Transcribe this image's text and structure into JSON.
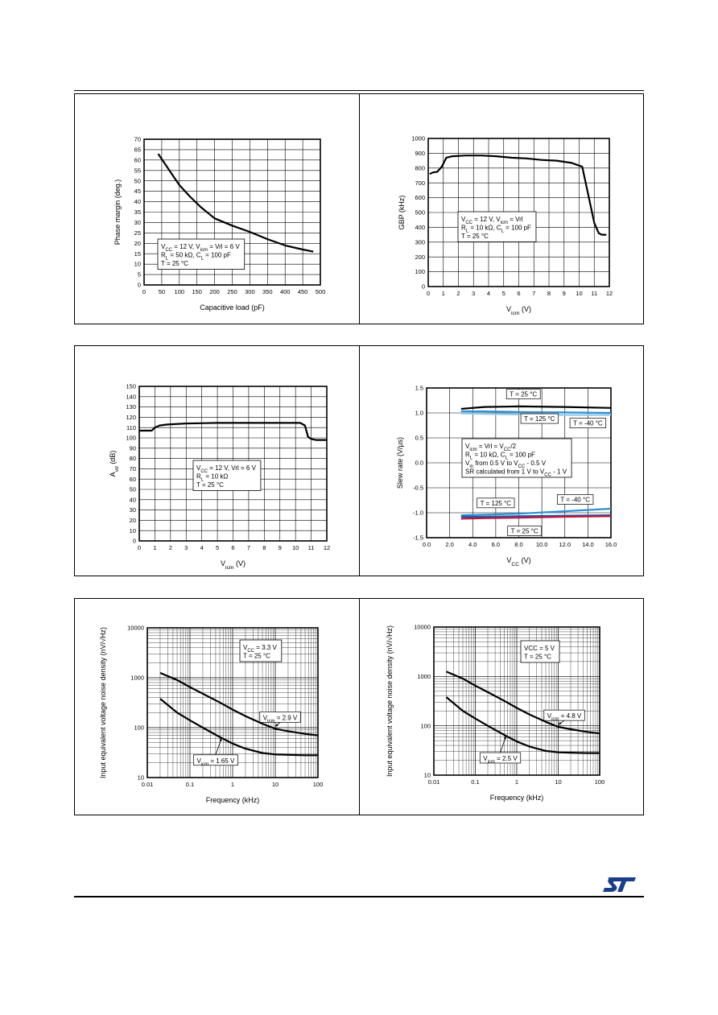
{
  "chart_data": [
    {
      "id": "phase-margin",
      "type": "line",
      "xlabel": "Capacitive load (pF)",
      "ylabel": "Phase margin (deg.)",
      "xlim": [
        0,
        500
      ],
      "ylim": [
        0,
        70
      ],
      "xticks": [
        0,
        50,
        100,
        150,
        200,
        250,
        300,
        350,
        400,
        450,
        500
      ],
      "yticks": [
        0,
        5,
        10,
        15,
        20,
        25,
        30,
        35,
        40,
        45,
        50,
        55,
        60,
        65,
        70
      ],
      "grid": true,
      "series": [
        {
          "x": [
            40,
            60,
            80,
            100,
            130,
            160,
            200,
            250,
            300,
            350,
            400,
            450,
            480
          ],
          "y": [
            63,
            58,
            53,
            48,
            42.5,
            37.5,
            32,
            28.5,
            25.5,
            22,
            19,
            17,
            16
          ]
        }
      ],
      "annotation": {
        "lines": [
          [
            {
              "t": "V"
            },
            {
              "t": "CC",
              "sub": true
            },
            {
              "t": " = 12 V, V"
            },
            {
              "t": "icm",
              "sub": true
            },
            {
              "t": " = Vrl = 6 V"
            }
          ],
          [
            {
              "t": "R"
            },
            {
              "t": "L",
              "sub": true
            },
            {
              "t": " = 50 kΩ, C"
            },
            {
              "t": "L",
              "sub": true
            },
            {
              "t": " = 100 pF"
            }
          ],
          [
            {
              "t": "T = 25 °C"
            }
          ]
        ]
      }
    },
    {
      "id": "gbp",
      "type": "line",
      "xlabel": [
        {
          "t": "V"
        },
        {
          "t": "icm",
          "sub": true
        },
        {
          "t": " (V)"
        }
      ],
      "ylabel": "GBP (kHz)",
      "xlim": [
        0,
        12
      ],
      "ylim": [
        0,
        1000
      ],
      "xticks": [
        0,
        1,
        2,
        3,
        4,
        5,
        6,
        7,
        8,
        9,
        10,
        11,
        12
      ],
      "yticks": [
        0,
        100,
        200,
        300,
        400,
        500,
        600,
        700,
        800,
        900,
        1000
      ],
      "grid": true,
      "series": [
        {
          "x": [
            0.1,
            0.3,
            0.6,
            0.9,
            1.2,
            1.6,
            2.5,
            3.5,
            4.5,
            5.5,
            6.5,
            7.5,
            8.5,
            9.5,
            10.2,
            10.6,
            11.0,
            11.3,
            11.5,
            11.8
          ],
          "y": [
            760,
            770,
            775,
            810,
            870,
            880,
            885,
            885,
            880,
            870,
            865,
            855,
            850,
            835,
            810,
            620,
            430,
            360,
            350,
            350
          ]
        }
      ],
      "annotation": {
        "lines": [
          [
            {
              "t": "V"
            },
            {
              "t": "CC",
              "sub": true
            },
            {
              "t": " = 12 V, V"
            },
            {
              "t": "icm",
              "sub": true
            },
            {
              "t": " = Vrl"
            }
          ],
          [
            {
              "t": "R"
            },
            {
              "t": "L",
              "sub": true
            },
            {
              "t": " = 10 kΩ, C"
            },
            {
              "t": "L",
              "sub": true
            },
            {
              "t": " = 100 pF"
            }
          ],
          [
            {
              "t": "T = 25 °C"
            }
          ]
        ]
      }
    },
    {
      "id": "avd",
      "type": "line",
      "xlabel": [
        {
          "t": "V"
        },
        {
          "t": "icm",
          "sub": true
        },
        {
          "t": " (V)"
        }
      ],
      "ylabel": [
        {
          "t": "A"
        },
        {
          "t": "vd",
          "sub": true
        },
        {
          "t": " (dB)"
        }
      ],
      "xlim": [
        0,
        12
      ],
      "ylim": [
        0,
        150
      ],
      "xticks": [
        0,
        1,
        2,
        3,
        4,
        5,
        6,
        7,
        8,
        9,
        10,
        11,
        12
      ],
      "yticks": [
        0,
        10,
        20,
        30,
        40,
        50,
        60,
        70,
        80,
        90,
        100,
        110,
        120,
        130,
        140,
        150
      ],
      "grid": true,
      "series": [
        {
          "x": [
            0,
            0.8,
            1.0,
            1.3,
            1.8,
            3,
            5,
            7,
            9,
            10.3,
            10.6,
            10.8,
            11.0,
            11.3,
            12
          ],
          "y": [
            107,
            107,
            110,
            112,
            113,
            114,
            114.5,
            114.5,
            114.5,
            114.5,
            112,
            101,
            99,
            98,
            98
          ]
        }
      ],
      "annotation": {
        "lines": [
          [
            {
              "t": "V"
            },
            {
              "t": "CC",
              "sub": true
            },
            {
              "t": " = 12 V, Vrl = 6 V"
            }
          ],
          [
            {
              "t": "R"
            },
            {
              "t": "L",
              "sub": true
            },
            {
              "t": " = 10 kΩ"
            }
          ],
          [
            {
              "t": "T = 25 °C"
            }
          ]
        ]
      }
    },
    {
      "id": "slew-rate",
      "type": "line",
      "xlabel": [
        {
          "t": "V"
        },
        {
          "t": "CC",
          "sub": true
        },
        {
          "t": " (V)"
        }
      ],
      "ylabel": "Slew rate (V/µs)",
      "xlim": [
        0,
        16
      ],
      "ylim": [
        -1.5,
        1.5
      ],
      "xticks": [
        0,
        2,
        4,
        6,
        8,
        10,
        12,
        14,
        16
      ],
      "xticklabels": [
        "0.0",
        "2.0",
        "4.0",
        "6.0",
        "8.0",
        "10.0",
        "12.0",
        "14.0",
        "16.0"
      ],
      "yticks": [
        -1.5,
        -1.0,
        -0.5,
        0,
        0.5,
        1.0,
        1.5
      ],
      "yticklabels": [
        "-1.5",
        "-1.0",
        "-0.5",
        "0.0",
        "0.5",
        "1.0",
        "1.5"
      ],
      "grid": true,
      "series": [
        {
          "name": "T = 25 °C",
          "color": "#000000",
          "x": [
            3,
            5,
            8,
            12,
            16
          ],
          "y": [
            1.08,
            1.12,
            1.13,
            1.12,
            1.1
          ]
        },
        {
          "name": "T = 125 °C",
          "color": "#2e8fd0",
          "x": [
            3,
            5,
            8,
            12,
            16
          ],
          "y": [
            1.03,
            1.03,
            1.02,
            1.01,
            1.0
          ]
        },
        {
          "name": "T = -40 °C",
          "color": "#8fc8ea",
          "x": [
            3,
            5,
            8,
            12,
            16
          ],
          "y": [
            0.99,
            0.98,
            0.97,
            0.96,
            0.96
          ]
        },
        {
          "name": "T = -40 °C",
          "color": "#2e8fd0",
          "x": [
            3,
            5,
            8,
            12,
            16
          ],
          "y": [
            -1.05,
            -1.04,
            -1.02,
            -0.97,
            -0.92
          ]
        },
        {
          "name": "T = 125 °C",
          "color": "#1a5aa8",
          "x": [
            3,
            5,
            8,
            12,
            16
          ],
          "y": [
            -1.08,
            -1.08,
            -1.07,
            -1.06,
            -1.05
          ]
        },
        {
          "name": "T = 25 °C",
          "color": "#c0143c",
          "x": [
            3,
            5,
            8,
            12,
            16
          ],
          "y": [
            -1.12,
            -1.11,
            -1.1,
            -1.08,
            -1.07
          ]
        }
      ],
      "labels": [
        {
          "text": "T = 25 °C",
          "x": 8.4,
          "y": 1.36
        },
        {
          "text": "T = 125 °C",
          "x": 9.8,
          "y": 0.87
        },
        {
          "text": "T = -40 °C",
          "x": 14.0,
          "y": 0.78
        },
        {
          "text": "T = 125 °C",
          "x": 6.0,
          "y": -0.82
        },
        {
          "text": "T = -40 °C",
          "x": 12.9,
          "y": -0.75
        },
        {
          "text": "T = 25 °C",
          "x": 8.5,
          "y": -1.38
        }
      ],
      "annotation": {
        "lines": [
          [
            {
              "t": "V"
            },
            {
              "t": "icm",
              "sub": true
            },
            {
              "t": " = Vrl = V"
            },
            {
              "t": "CC",
              "sub": true
            },
            {
              "t": "/2"
            }
          ],
          [
            {
              "t": "R"
            },
            {
              "t": "L",
              "sub": true
            },
            {
              "t": " = 10 kΩ, C"
            },
            {
              "t": "L",
              "sub": true
            },
            {
              "t": " = 100 pF"
            }
          ],
          [
            {
              "t": "V"
            },
            {
              "t": "in",
              "sub": true
            },
            {
              "t": " from 0.5 V to V"
            },
            {
              "t": "CC",
              "sub": true
            },
            {
              "t": " - 0.5 V"
            }
          ],
          [
            {
              "t": "SR calculated from 1 V to V"
            },
            {
              "t": "CC",
              "sub": true
            },
            {
              "t": " - 1 V"
            }
          ]
        ]
      }
    },
    {
      "id": "noise-3v3",
      "type": "line",
      "xlabel": "Frequency (kHz)",
      "ylabel": "Input equivalent voltage noise density (nV/√Hz)",
      "xscale": "log",
      "yscale": "log",
      "xlim": [
        0.01,
        100
      ],
      "ylim": [
        10,
        10000
      ],
      "xticks": [
        0.01,
        0.1,
        1,
        10,
        100
      ],
      "xticklabels": [
        "0.01",
        "0.1",
        "1",
        "10",
        "100"
      ],
      "yticks": [
        10,
        100,
        1000,
        10000
      ],
      "yticklabels": [
        "10",
        "100",
        "1000",
        "10000"
      ],
      "grid": true,
      "series": [
        {
          "x": [
            0.02,
            0.05,
            0.1,
            0.2,
            0.5,
            1,
            2,
            5,
            10,
            20,
            50,
            100
          ],
          "y": [
            1250,
            900,
            650,
            480,
            320,
            230,
            170,
            120,
            95,
            85,
            75,
            70
          ]
        },
        {
          "x": [
            0.02,
            0.05,
            0.1,
            0.2,
            0.5,
            1,
            2,
            5,
            10,
            20,
            50,
            100
          ],
          "y": [
            380,
            200,
            140,
            100,
            65,
            48,
            38,
            31,
            29,
            28.5,
            28,
            28
          ]
        }
      ],
      "curve_labels": [
        {
          "parts": [
            {
              "t": "V"
            },
            {
              "t": "icm",
              "sub": true
            },
            {
              "t": " = 2.9 V"
            }
          ],
          "x": 13,
          "y": 160,
          "arrow": [
            10,
            105
          ]
        },
        {
          "parts": [
            {
              "t": "V"
            },
            {
              "t": "icm",
              "sub": true
            },
            {
              "t": " = 1.65 V"
            }
          ],
          "x": 0.4,
          "y": 22,
          "arrow": [
            0.55,
            62
          ]
        }
      ],
      "annotation": {
        "lines": [
          [
            {
              "t": "V"
            },
            {
              "t": "CC",
              "sub": true
            },
            {
              "t": " = 3.3 V"
            }
          ],
          [
            {
              "t": "T = 25 °C"
            }
          ]
        ]
      }
    },
    {
      "id": "noise-5v",
      "type": "line",
      "xlabel": "Frequency (kHz)",
      "ylabel": "Input equivalent voltage noise density (nV/√Hz)",
      "xscale": "log",
      "yscale": "log",
      "xlim": [
        0.01,
        100
      ],
      "ylim": [
        10,
        10000
      ],
      "xticks": [
        0.01,
        0.1,
        1,
        10,
        100
      ],
      "xticklabels": [
        "0.01",
        "0.1",
        "1",
        "10",
        "100"
      ],
      "yticks": [
        10,
        100,
        1000,
        10000
      ],
      "yticklabels": [
        "10",
        "100",
        "1000",
        "10000"
      ],
      "grid": true,
      "series": [
        {
          "x": [
            0.02,
            0.05,
            0.1,
            0.2,
            0.5,
            1,
            2,
            5,
            10,
            20,
            50,
            100
          ],
          "y": [
            1250,
            900,
            650,
            480,
            320,
            230,
            170,
            120,
            95,
            85,
            75,
            70
          ]
        },
        {
          "x": [
            0.02,
            0.05,
            0.1,
            0.2,
            0.5,
            1,
            2,
            5,
            10,
            20,
            50,
            100
          ],
          "y": [
            380,
            200,
            140,
            100,
            65,
            48,
            38,
            31,
            29,
            28.5,
            28,
            28
          ]
        }
      ],
      "curve_labels": [
        {
          "parts": [
            {
              "t": "V"
            },
            {
              "t": "icm",
              "sub": true
            },
            {
              "t": " = 4.8 V"
            }
          ],
          "x": 14,
          "y": 160,
          "arrow": [
            10,
            105
          ]
        },
        {
          "parts": [
            {
              "t": "V"
            },
            {
              "t": "icm",
              "sub": true
            },
            {
              "t": " = 2.5 V"
            }
          ],
          "x": 0.4,
          "y": 22,
          "arrow": [
            0.55,
            62
          ]
        }
      ],
      "annotation": {
        "lines": [
          [
            {
              "t": "VCC = 5 V"
            }
          ],
          [
            {
              "t": "T = 25 °C"
            }
          ]
        ]
      }
    }
  ],
  "logo": {
    "text": "ST",
    "color": "#1a3e8a"
  }
}
